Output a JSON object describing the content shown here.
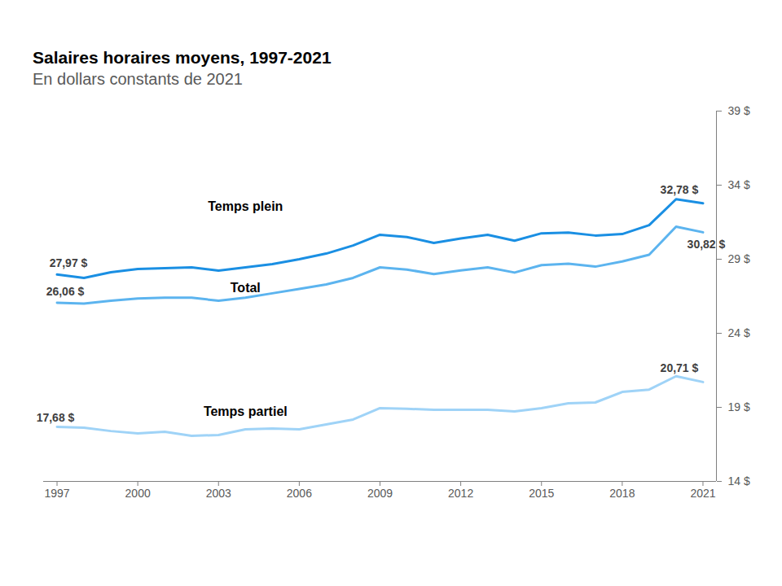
{
  "chart_data": {
    "type": "line",
    "title": "Salaires horaires moyens, 1997-2021",
    "subtitle": "En dollars constants de 2021",
    "x": [
      1997,
      1998,
      1999,
      2000,
      2001,
      2002,
      2003,
      2004,
      2005,
      2006,
      2007,
      2008,
      2009,
      2010,
      2011,
      2012,
      2013,
      2014,
      2015,
      2016,
      2017,
      2018,
      2019,
      2020,
      2021
    ],
    "series": [
      {
        "name": "Temps plein",
        "color": "#1a8fe3",
        "values": [
          27.97,
          27.74,
          28.12,
          28.34,
          28.4,
          28.45,
          28.23,
          28.45,
          28.67,
          29.0,
          29.38,
          29.93,
          30.65,
          30.5,
          30.1,
          30.4,
          30.65,
          30.25,
          30.75,
          30.8,
          30.6,
          30.7,
          31.3,
          33.05,
          32.78
        ],
        "value_labels": [
          "27,97 $",
          null,
          null,
          null,
          null,
          null,
          null,
          null,
          null,
          null,
          null,
          null,
          null,
          null,
          null,
          null,
          null,
          null,
          null,
          null,
          null,
          null,
          null,
          null,
          "32,78 $"
        ]
      },
      {
        "name": "Total",
        "color": "#5cb4ef",
        "values": [
          26.06,
          26.0,
          26.2,
          26.35,
          26.4,
          26.4,
          26.2,
          26.4,
          26.7,
          27.0,
          27.3,
          27.74,
          28.45,
          28.3,
          28.0,
          28.25,
          28.45,
          28.1,
          28.6,
          28.7,
          28.5,
          28.85,
          29.3,
          31.2,
          30.82
        ],
        "value_labels": [
          "26,06 $",
          null,
          null,
          null,
          null,
          null,
          null,
          null,
          null,
          null,
          null,
          null,
          null,
          null,
          null,
          null,
          null,
          null,
          null,
          null,
          null,
          null,
          null,
          null,
          "30,82 $"
        ]
      },
      {
        "name": "Temps partiel",
        "color": "#9fd3f7",
        "values": [
          17.68,
          17.63,
          17.4,
          17.24,
          17.35,
          17.08,
          17.13,
          17.52,
          17.57,
          17.52,
          17.85,
          18.18,
          18.95,
          18.9,
          18.84,
          18.84,
          18.84,
          18.73,
          18.95,
          19.27,
          19.33,
          20.04,
          20.2,
          21.1,
          20.71
        ],
        "value_labels": [
          "17,68 $",
          null,
          null,
          null,
          null,
          null,
          null,
          null,
          null,
          null,
          null,
          null,
          null,
          null,
          null,
          null,
          null,
          null,
          null,
          null,
          null,
          null,
          null,
          null,
          "20,71 $"
        ]
      }
    ],
    "xlim": [
      1996.5,
      2021.5
    ],
    "xticks": [
      1997,
      2000,
      2003,
      2006,
      2009,
      2012,
      2015,
      2018,
      2021
    ],
    "ylim": [
      14,
      39
    ],
    "yticks": [
      {
        "value": 14,
        "label": "14 $"
      },
      {
        "value": 19,
        "label": "19 $"
      },
      {
        "value": 24,
        "label": "24 $"
      },
      {
        "value": 29,
        "label": "29 $"
      },
      {
        "value": 34,
        "label": "34 $"
      },
      {
        "value": 39,
        "label": "39 $"
      }
    ],
    "grid": false
  }
}
